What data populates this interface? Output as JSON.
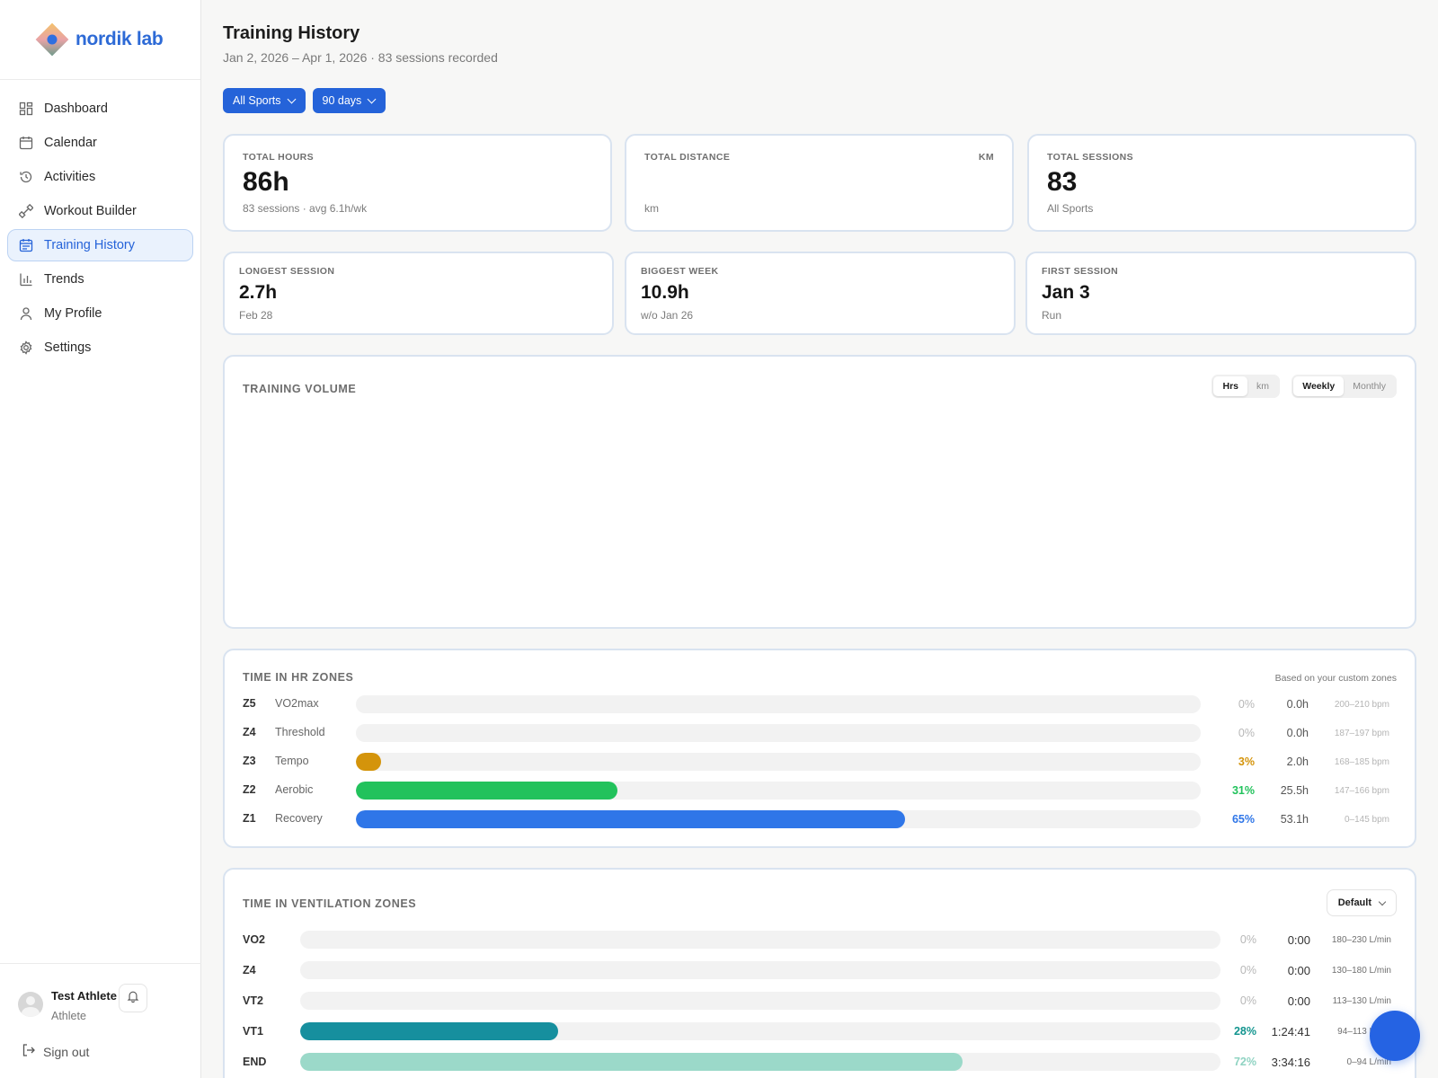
{
  "brand": {
    "name": "nordik lab"
  },
  "nav": {
    "items": [
      {
        "label": "Dashboard",
        "icon": "dashboard-icon"
      },
      {
        "label": "Calendar",
        "icon": "calendar-icon"
      },
      {
        "label": "Activities",
        "icon": "history-icon"
      },
      {
        "label": "Workout Builder",
        "icon": "dumbbell-icon"
      },
      {
        "label": "Training History",
        "icon": "calendar-list-icon",
        "active": true
      },
      {
        "label": "Trends",
        "icon": "bar-chart-icon"
      },
      {
        "label": "My Profile",
        "icon": "user-icon"
      },
      {
        "label": "Settings",
        "icon": "gear-icon"
      }
    ]
  },
  "user": {
    "name": "Test Athlete",
    "role": "Athlete",
    "signout_label": "Sign out"
  },
  "header": {
    "title": "Training History",
    "subtitle": "Jan 2, 2026 – Apr 1, 2026 · 83 sessions recorded"
  },
  "filters": {
    "sport": "All Sports",
    "range": "90 days"
  },
  "stats_top": [
    {
      "label": "TOTAL HOURS",
      "value": "86h",
      "sub": "83 sessions · avg 6.1h/wk",
      "unit": ""
    },
    {
      "label": "TOTAL DISTANCE",
      "value": "",
      "sub": "km",
      "unit": "KM"
    },
    {
      "label": "TOTAL SESSIONS",
      "value": "83",
      "sub": "All Sports",
      "unit": ""
    }
  ],
  "stats_bottom": [
    {
      "label": "LONGEST SESSION",
      "value": "2.7h",
      "sub": "Feb 28"
    },
    {
      "label": "BIGGEST WEEK",
      "value": "10.9h",
      "sub": "w/o Jan 26"
    },
    {
      "label": "FIRST SESSION",
      "value": "Jan 3",
      "sub": "Run"
    }
  ],
  "volume": {
    "title": "TRAINING VOLUME",
    "unit_toggle": [
      "Hrs",
      "km"
    ],
    "unit_selected": "Hrs",
    "period_toggle": [
      "Weekly",
      "Monthly"
    ],
    "period_selected": "Weekly"
  },
  "hr_zones": {
    "title": "TIME IN HR ZONES",
    "note": "Based on your custom zones",
    "rows": [
      {
        "code": "Z5",
        "name": "VO2max",
        "fraction": 0.0,
        "pct": "0%",
        "hours": "0.0h",
        "range": "200–210 bpm",
        "color": "#b7b7b7"
      },
      {
        "code": "Z4",
        "name": "Threshold",
        "fraction": 0.0,
        "pct": "0%",
        "hours": "0.0h",
        "range": "187–197 bpm",
        "color": "#b7b7b7"
      },
      {
        "code": "Z3",
        "name": "Tempo",
        "fraction": 0.03,
        "pct": "3%",
        "hours": "2.0h",
        "range": "168–185 bpm",
        "color": "#d4940b"
      },
      {
        "code": "Z2",
        "name": "Aerobic",
        "fraction": 0.31,
        "pct": "31%",
        "hours": "25.5h",
        "range": "147–166 bpm",
        "color": "#22c25c"
      },
      {
        "code": "Z1",
        "name": "Recovery",
        "fraction": 0.65,
        "pct": "65%",
        "hours": "53.1h",
        "range": "0–145 bpm",
        "color": "#2f76e8"
      }
    ]
  },
  "vent_zones": {
    "title": "TIME IN VENTILATION ZONES",
    "dropdown": "Default",
    "rows": [
      {
        "code": "VO2",
        "fraction": 0.0,
        "pct": "0%",
        "time": "0:00",
        "range": "180–230 L/min",
        "color": "#b7b7b7"
      },
      {
        "code": "Z4",
        "fraction": 0.0,
        "pct": "0%",
        "time": "0:00",
        "range": "130–180 L/min",
        "color": "#b7b7b7"
      },
      {
        "code": "VT2",
        "fraction": 0.0,
        "pct": "0%",
        "time": "0:00",
        "range": "113–130 L/min",
        "color": "#b7b7b7"
      },
      {
        "code": "VT1",
        "fraction": 0.28,
        "pct": "28%",
        "time": "1:24:41",
        "range": "94–113 L/min",
        "color": "#168f9e"
      },
      {
        "code": "END",
        "fraction": 0.72,
        "pct": "72%",
        "time": "3:34:16",
        "range": "0–94 L/min",
        "color": "#9bd9c9"
      }
    ]
  }
}
